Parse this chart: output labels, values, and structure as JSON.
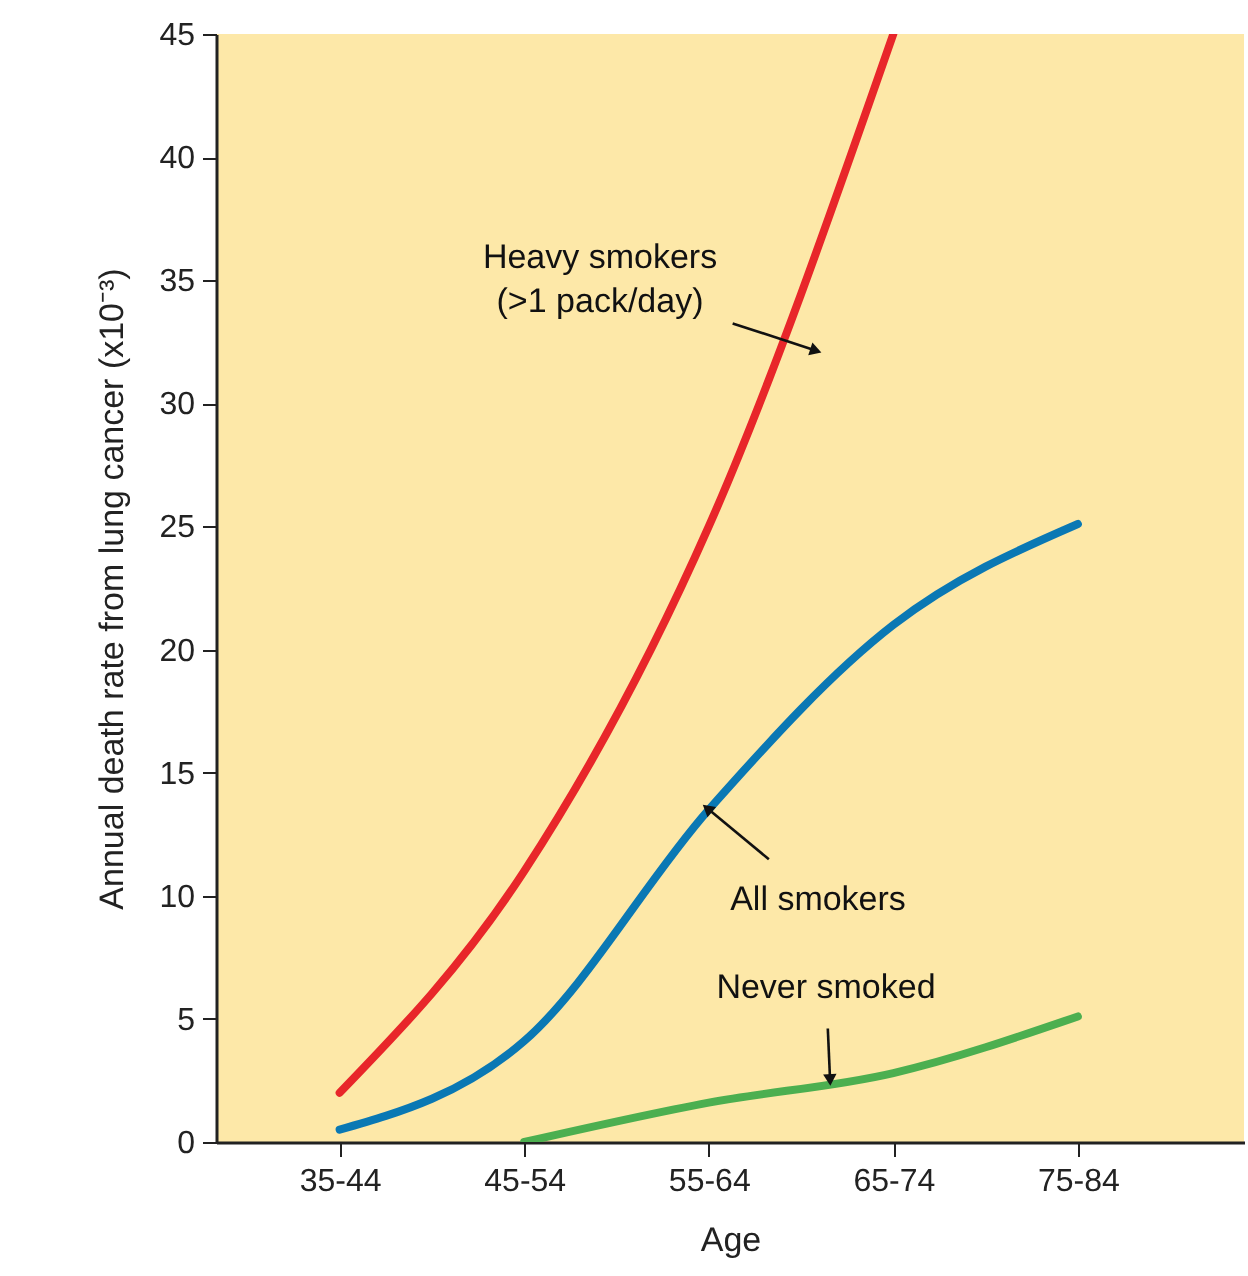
{
  "chart_data": {
    "type": "line",
    "xlabel": "Age",
    "ylabel": "Annual death rate from lung cancer (x10⁻³)",
    "categories": [
      "35-44",
      "45-54",
      "55-64",
      "65-74",
      "75-84"
    ],
    "ylim": [
      0,
      45
    ],
    "yticks": [
      0,
      5,
      10,
      15,
      20,
      25,
      30,
      35,
      40,
      45
    ],
    "marker": "none",
    "line_style": "solid",
    "series": [
      {
        "color": "#e8262a",
        "values": [
          2,
          11,
          25,
          45,
          null
        ]
      },
      {
        "color": "#0a78b4",
        "values": [
          0.5,
          4.1,
          13.5,
          21,
          25.1
        ]
      },
      {
        "color": "#4caf50",
        "values": [
          null,
          0,
          1.6,
          2.8,
          5.1
        ]
      }
    ],
    "annotations": [
      "Heavy smokers\n(>1 pack/day)",
      {
        "text": "All smokers",
        "x": "55-64",
        "y": 13.5
      },
      {
        "text": "Never smoked",
        "y": 2.6
      }
    ]
  }
}
